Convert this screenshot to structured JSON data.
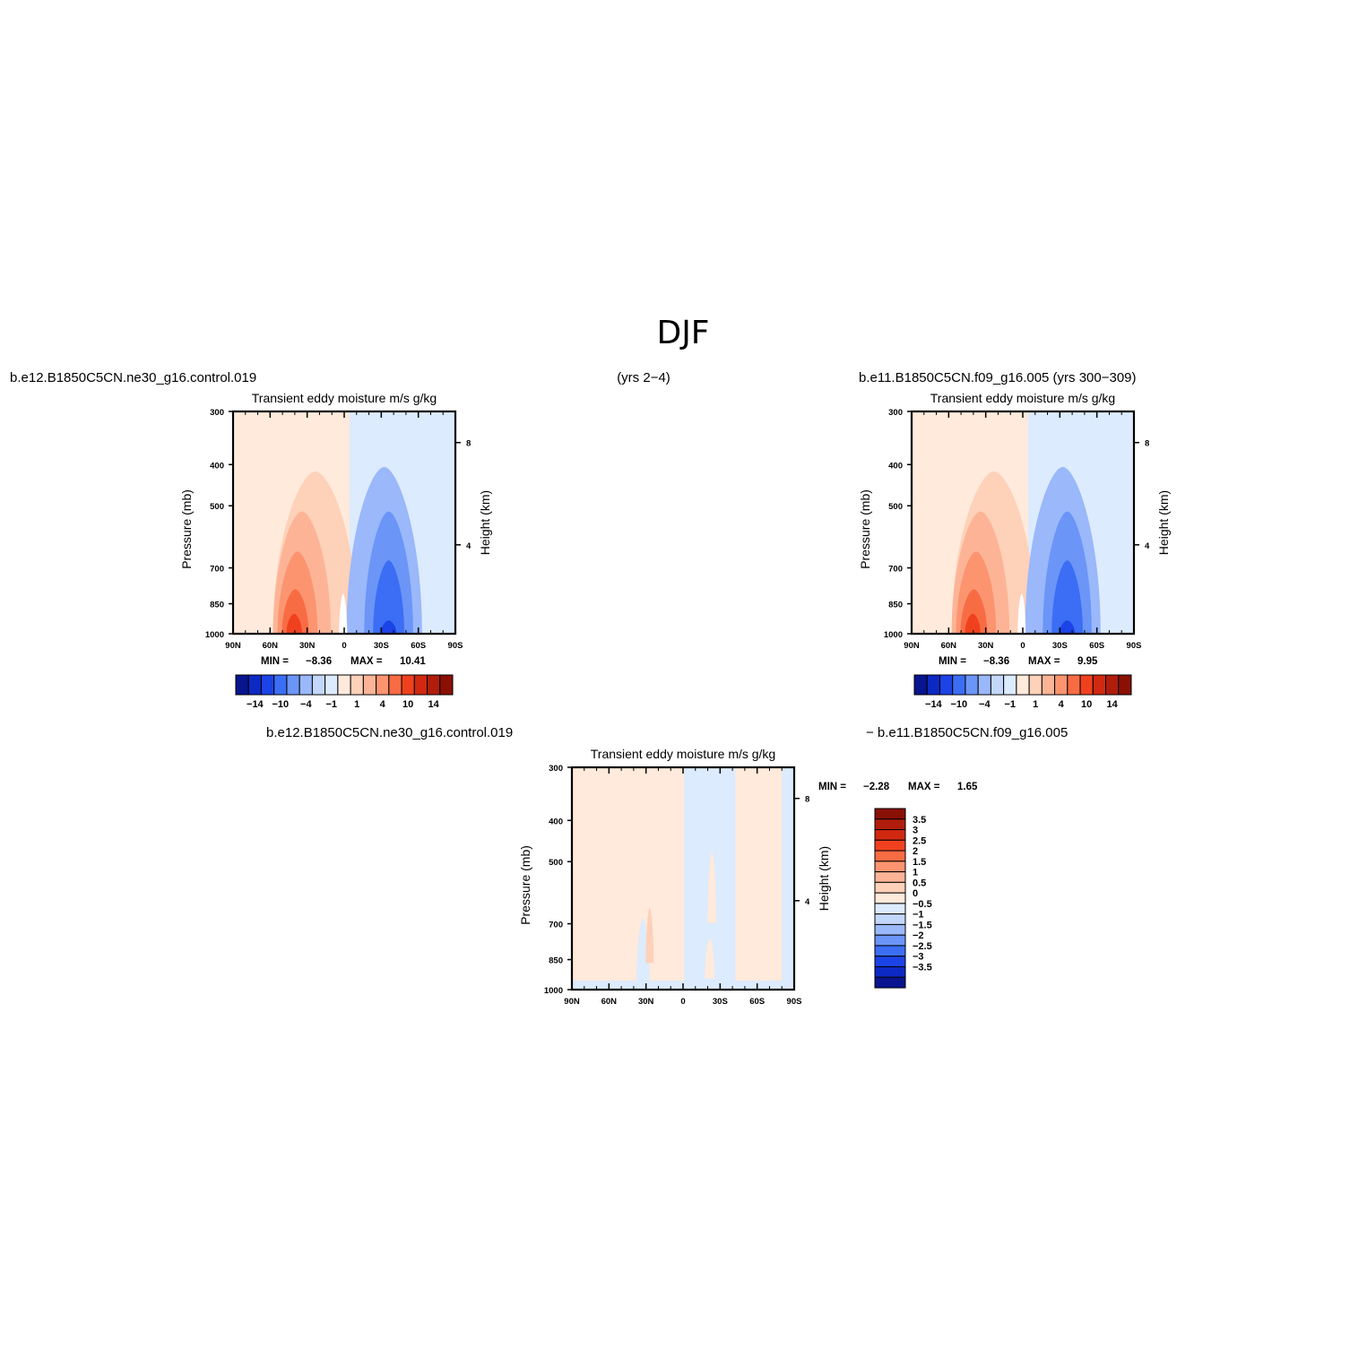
{
  "figure": {
    "title": "DJF",
    "header_left": "b.e12.B1850C5CN.ne30_g16.control.019",
    "header_middle": "(yrs 2−4)",
    "header_right": "b.e11.B1850C5CN.f09_g16.005 (yrs 300−309)",
    "diff_header_left": "b.e12.B1850C5CN.ne30_g16.control.019",
    "diff_header_right": "− b.e11.B1850C5CN.f09_g16.005"
  },
  "colors": {
    "blues": [
      "#08158f",
      "#0d29c4",
      "#1b43e6",
      "#3b6ef5",
      "#6b95f7",
      "#9ab8fa",
      "#c3d7fb",
      "#dcebfe"
    ],
    "reds": [
      "#ffeadb",
      "#fed1b9",
      "#fdb496",
      "#fc9470",
      "#f86c44",
      "#f0411f",
      "#d12811",
      "#b01d0c",
      "#8a1006"
    ],
    "axis": "#000000"
  },
  "chart_data": [
    {
      "type": "heatmap",
      "id": "panel_left",
      "subtitle": "Transient eddy moisture m/s g/kg",
      "x_tick_labels": [
        "90N",
        "60N",
        "30N",
        "0",
        "30S",
        "60S",
        "90S"
      ],
      "y_tick_labels": [
        "300",
        "400",
        "500",
        "700",
        "850",
        "1000"
      ],
      "y_ticks_mb": [
        300,
        400,
        500,
        700,
        850,
        1000
      ],
      "y2_tick_labels": [
        "8",
        "4"
      ],
      "xlabel": "",
      "ylabel": "Pressure (mb)",
      "y2label": "Height (km)",
      "xlim": [
        "90N",
        "90S"
      ],
      "ylim_mb": [
        300,
        1000
      ],
      "y_scale": "log",
      "min_label": "MIN =",
      "min_value": "−8.36",
      "max_label": "MAX =",
      "max_value": "10.41",
      "colorbar_labels": [
        "−14",
        "−10",
        "−4",
        "−1",
        "1",
        "4",
        "10",
        "14"
      ]
    },
    {
      "type": "heatmap",
      "id": "panel_right",
      "subtitle": "Transient eddy moisture m/s g/kg",
      "x_tick_labels": [
        "90N",
        "60N",
        "30N",
        "0",
        "30S",
        "60S",
        "90S"
      ],
      "y_tick_labels": [
        "300",
        "400",
        "500",
        "700",
        "850",
        "1000"
      ],
      "y_ticks_mb": [
        300,
        400,
        500,
        700,
        850,
        1000
      ],
      "y2_tick_labels": [
        "8",
        "4"
      ],
      "xlabel": "",
      "ylabel": "Pressure (mb)",
      "y2label": "Height (km)",
      "xlim": [
        "90N",
        "90S"
      ],
      "ylim_mb": [
        300,
        1000
      ],
      "y_scale": "log",
      "min_label": "MIN =",
      "min_value": "−8.36",
      "max_label": "MAX =",
      "max_value": "9.95",
      "colorbar_labels": [
        "−14",
        "−10",
        "−4",
        "−1",
        "1",
        "4",
        "10",
        "14"
      ]
    },
    {
      "type": "heatmap",
      "id": "panel_diff",
      "subtitle": "Transient eddy moisture m/s g/kg",
      "x_tick_labels": [
        "90N",
        "60N",
        "30N",
        "0",
        "30S",
        "60S",
        "90S"
      ],
      "y_tick_labels": [
        "300",
        "400",
        "500",
        "700",
        "850",
        "1000"
      ],
      "y_ticks_mb": [
        300,
        400,
        500,
        700,
        850,
        1000
      ],
      "y2_tick_labels": [
        "8",
        "4"
      ],
      "xlabel": "",
      "ylabel": "Pressure (mb)",
      "y2label": "Height (km)",
      "xlim": [
        "90N",
        "90S"
      ],
      "ylim_mb": [
        300,
        1000
      ],
      "y_scale": "log",
      "min_label": "MIN =",
      "min_value": "−2.28",
      "max_label": "MAX =",
      "max_value": "1.65",
      "colorbar_labels": [
        "3.5",
        "3",
        "2.5",
        "2",
        "1.5",
        "1",
        "0.5",
        "0",
        "−0.5",
        "−1",
        "−1.5",
        "−2",
        "−2.5",
        "−3",
        "−3.5"
      ]
    }
  ]
}
